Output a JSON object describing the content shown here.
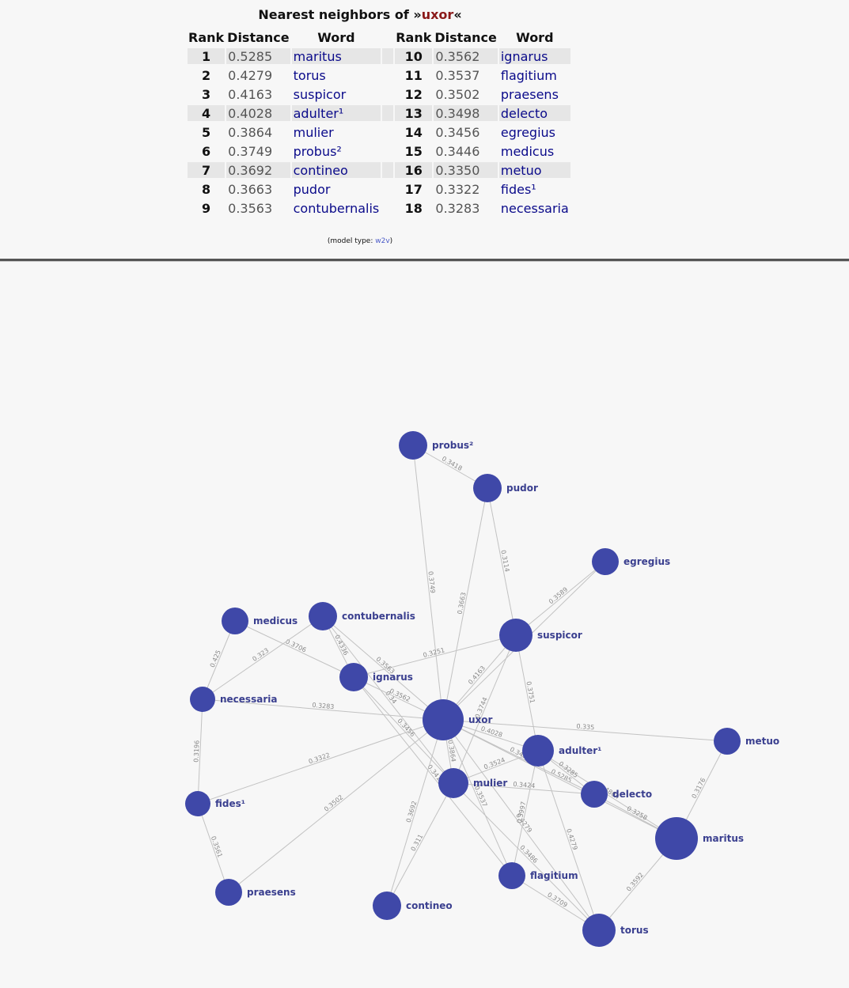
{
  "title": {
    "prefix": "Nearest neighbors of »",
    "headword": "uxor",
    "suffix": "«"
  },
  "table": {
    "headers": [
      "Rank",
      "Distance",
      "Word",
      "Rank",
      "Distance",
      "Word"
    ],
    "rows": [
      {
        "l": {
          "rank": "1",
          "dist": "0.5285",
          "word": "maritus"
        },
        "r": {
          "rank": "10",
          "dist": "0.3562",
          "word": "ignarus"
        }
      },
      {
        "l": {
          "rank": "2",
          "dist": "0.4279",
          "word": "torus"
        },
        "r": {
          "rank": "11",
          "dist": "0.3537",
          "word": "flagitium"
        }
      },
      {
        "l": {
          "rank": "3",
          "dist": "0.4163",
          "word": "suspicor"
        },
        "r": {
          "rank": "12",
          "dist": "0.3502",
          "word": "praesens"
        }
      },
      {
        "l": {
          "rank": "4",
          "dist": "0.4028",
          "word": "adulter¹"
        },
        "r": {
          "rank": "13",
          "dist": "0.3498",
          "word": "delecto"
        }
      },
      {
        "l": {
          "rank": "5",
          "dist": "0.3864",
          "word": "mulier"
        },
        "r": {
          "rank": "14",
          "dist": "0.3456",
          "word": "egregius"
        }
      },
      {
        "l": {
          "rank": "6",
          "dist": "0.3749",
          "word": "probus²"
        },
        "r": {
          "rank": "15",
          "dist": "0.3446",
          "word": "medicus"
        }
      },
      {
        "l": {
          "rank": "7",
          "dist": "0.3692",
          "word": "contineo"
        },
        "r": {
          "rank": "16",
          "dist": "0.3350",
          "word": "metuo"
        }
      },
      {
        "l": {
          "rank": "8",
          "dist": "0.3663",
          "word": "pudor"
        },
        "r": {
          "rank": "17",
          "dist": "0.3322",
          "word": "fides¹"
        }
      },
      {
        "l": {
          "rank": "9",
          "dist": "0.3563",
          "word": "contubernalis"
        },
        "r": {
          "rank": "18",
          "dist": "0.3283",
          "word": "necessaria"
        }
      }
    ]
  },
  "model": {
    "prefix": "(model type: ",
    "type": "w2v",
    "suffix": ")"
  },
  "graph": {
    "node_color": "#3f48a8",
    "edge_color": "#c2c2c2",
    "nodes": [
      {
        "id": "uxor",
        "label": "uxor"
      },
      {
        "id": "probus",
        "label": "probus²"
      },
      {
        "id": "pudor",
        "label": "pudor"
      },
      {
        "id": "egregius",
        "label": "egregius"
      },
      {
        "id": "suspicor",
        "label": "suspicor"
      },
      {
        "id": "medicus",
        "label": "medicus"
      },
      {
        "id": "contubernalis",
        "label": "contubernalis"
      },
      {
        "id": "ignarus",
        "label": "ignarus"
      },
      {
        "id": "necessaria",
        "label": "necessaria"
      },
      {
        "id": "metuo",
        "label": "metuo"
      },
      {
        "id": "adulter",
        "label": "adulter¹"
      },
      {
        "id": "mulier",
        "label": "mulier"
      },
      {
        "id": "delecto",
        "label": "delecto"
      },
      {
        "id": "fides",
        "label": "fides¹"
      },
      {
        "id": "maritus",
        "label": "maritus"
      },
      {
        "id": "flagitium",
        "label": "flagitium"
      },
      {
        "id": "praesens",
        "label": "praesens"
      },
      {
        "id": "contineo",
        "label": "contineo"
      },
      {
        "id": "torus",
        "label": "torus"
      }
    ],
    "edges": [
      {
        "a": "probus",
        "b": "pudor",
        "label": "0.3418"
      },
      {
        "a": "probus",
        "b": "uxor",
        "label": "0.3749"
      },
      {
        "a": "pudor",
        "b": "uxor",
        "label": "0.3663"
      },
      {
        "a": "pudor",
        "b": "suspicor",
        "label": "0.3114"
      },
      {
        "a": "egregius",
        "b": "suspicor",
        "label": "0.3589"
      },
      {
        "a": "egregius",
        "b": "uxor",
        "label": ""
      },
      {
        "a": "suspicor",
        "b": "uxor",
        "label": "0.4163"
      },
      {
        "a": "suspicor",
        "b": "ignarus",
        "label": "0.3251"
      },
      {
        "a": "suspicor",
        "b": "adulter",
        "label": "0.3751"
      },
      {
        "a": "suspicor",
        "b": "mulier",
        "label": "0.3744"
      },
      {
        "a": "medicus",
        "b": "ignarus",
        "label": "0.3706"
      },
      {
        "a": "medicus",
        "b": "necessaria",
        "label": "0.425"
      },
      {
        "a": "contubernalis",
        "b": "necessaria",
        "label": "0.323"
      },
      {
        "a": "contubernalis",
        "b": "ignarus",
        "label": "0.4336"
      },
      {
        "a": "contubernalis",
        "b": "uxor",
        "label": "0.3563"
      },
      {
        "a": "contubernalis",
        "b": "mulier",
        "label": "0.34"
      },
      {
        "a": "ignarus",
        "b": "uxor",
        "label": "0.3562"
      },
      {
        "a": "ignarus",
        "b": "mulier",
        "label": "0.3456"
      },
      {
        "a": "ignarus",
        "b": "flagitium",
        "label": "0.3417"
      },
      {
        "a": "necessaria",
        "b": "uxor",
        "label": "0.3283"
      },
      {
        "a": "necessaria",
        "b": "fides",
        "label": "0.3196"
      },
      {
        "a": "uxor",
        "b": "metuo",
        "label": "0.335"
      },
      {
        "a": "uxor",
        "b": "adulter",
        "label": "0.4028"
      },
      {
        "a": "uxor",
        "b": "mulier",
        "label": "0.3864"
      },
      {
        "a": "uxor",
        "b": "fides",
        "label": "0.3322"
      },
      {
        "a": "uxor",
        "b": "praesens",
        "label": "0.3502"
      },
      {
        "a": "uxor",
        "b": "contineo",
        "label": "0.3692"
      },
      {
        "a": "uxor",
        "b": "flagitium",
        "label": "0.3537"
      },
      {
        "a": "uxor",
        "b": "maritus",
        "label": "0.5285"
      },
      {
        "a": "uxor",
        "b": "torus",
        "label": "0.4279"
      },
      {
        "a": "uxor",
        "b": "delecto",
        "label": "0.3498"
      },
      {
        "a": "mulier",
        "b": "adulter",
        "label": "0.3524"
      },
      {
        "a": "mulier",
        "b": "delecto",
        "label": "0.3424"
      },
      {
        "a": "mulier",
        "b": "contineo",
        "label": "0.311"
      },
      {
        "a": "mulier",
        "b": "torus",
        "label": "0.3486"
      },
      {
        "a": "adulter",
        "b": "maritus",
        "label": "0.4804"
      },
      {
        "a": "adulter",
        "b": "delecto",
        "label": "0.3285"
      },
      {
        "a": "adulter",
        "b": "flagitium",
        "label": "0.3997"
      },
      {
        "a": "adulter",
        "b": "torus",
        "label": "0.4279"
      },
      {
        "a": "delecto",
        "b": "maritus",
        "label": "0.3258"
      },
      {
        "a": "metuo",
        "b": "maritus",
        "label": "0.3176"
      },
      {
        "a": "maritus",
        "b": "torus",
        "label": "0.3592"
      },
      {
        "a": "flagitium",
        "b": "torus",
        "label": "0.3709"
      },
      {
        "a": "fides",
        "b": "praesens",
        "label": "0.3561"
      }
    ]
  }
}
